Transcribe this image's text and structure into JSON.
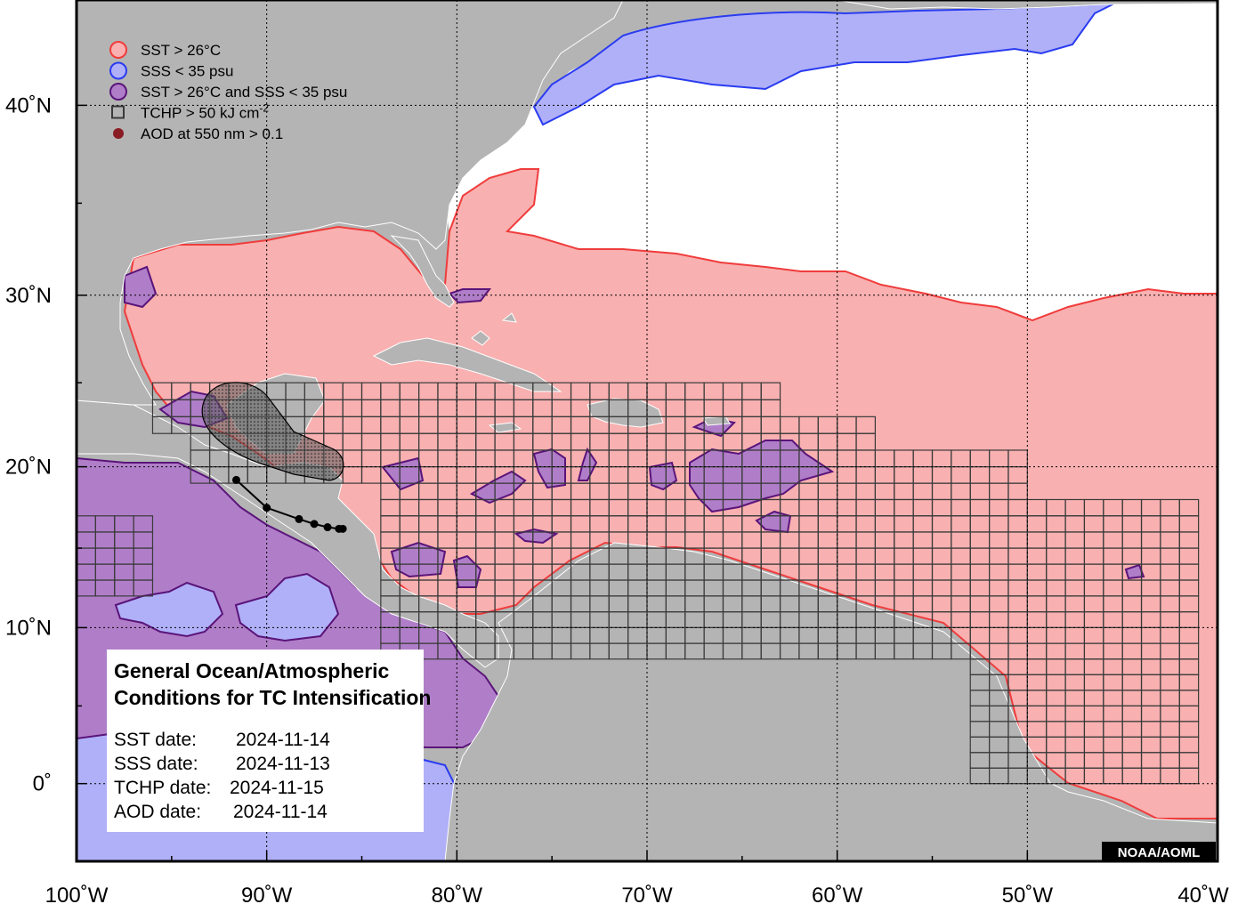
{
  "map": {
    "projection": "mercator",
    "lon_range": [
      -100,
      -40
    ],
    "lat_range": [
      -5,
      45
    ],
    "grid": true,
    "colors": {
      "land": "#b4b4b4",
      "open_ocean": "#ffffff",
      "sst": "#f8b0b0",
      "sst_border": "#f03c3c",
      "sss": "#b0b0f8",
      "sss_border": "#2a3cf0",
      "overlap": "#b07ec8",
      "overlap_border": "#5a147a",
      "tchp_grid": "#3a3a3a",
      "aod": "#8a1c24",
      "track_cone": "#4a4a4a"
    },
    "lon_ticks": [
      {
        "value": -100,
        "label": "100˚W"
      },
      {
        "value": -90,
        "label": "90˚W"
      },
      {
        "value": -80,
        "label": "80˚W"
      },
      {
        "value": -70,
        "label": "70˚W"
      },
      {
        "value": -60,
        "label": "60˚W"
      },
      {
        "value": -50,
        "label": "50˚W"
      },
      {
        "value": -40,
        "label": "40˚W"
      }
    ],
    "lat_ticks": [
      {
        "value": 0,
        "label": "0˚"
      },
      {
        "value": 10,
        "label": "10˚N"
      },
      {
        "value": 20,
        "label": "20˚N"
      },
      {
        "value": 30,
        "label": "30˚N"
      },
      {
        "value": 40,
        "label": "40˚N"
      }
    ]
  },
  "legend": {
    "placement": "top-left",
    "items": [
      {
        "label": "SST > 26°C",
        "symbol": "circle",
        "fill": "#f8b0b0",
        "stroke": "#f03c3c"
      },
      {
        "label": "SSS < 35 psu",
        "symbol": "circle",
        "fill": "#b0b0f8",
        "stroke": "#2a3cf0"
      },
      {
        "label": "SST > 26°C and SSS < 35 psu",
        "symbol": "circle",
        "fill": "#b07ec8",
        "stroke": "#5a147a"
      },
      {
        "label": "TCHP > 50 kJ cm",
        "superscript": "-2",
        "symbol": "square",
        "fill": "none",
        "stroke": "#3a3a3a"
      },
      {
        "label": "AOD at 550 nm > 0.1",
        "symbol": "dot",
        "fill": "#8a1c24",
        "stroke": "#8a1c24"
      }
    ]
  },
  "info_box": {
    "title_line1": "General Ocean/Atmospheric",
    "title_line2": "Conditions for TC Intensification",
    "dates": [
      {
        "label": "SST date:",
        "value": "2024-11-14"
      },
      {
        "label": "SSS date:",
        "value": "2024-11-13"
      },
      {
        "label": "TCHP date:",
        "value": "2024-11-15"
      },
      {
        "label": "AOD date:",
        "value": "2024-11-14"
      }
    ]
  },
  "credit": "NOAA/AOML",
  "storm_track": {
    "points": [
      {
        "lon": -91.6,
        "lat": 19.2
      },
      {
        "lon": -90.0,
        "lat": 17.5
      },
      {
        "lon": -88.3,
        "lat": 16.8
      },
      {
        "lon": -87.5,
        "lat": 16.5
      },
      {
        "lon": -86.8,
        "lat": 16.3
      },
      {
        "lon": -86.2,
        "lat": 16.2
      },
      {
        "lon": -86.0,
        "lat": 16.2
      }
    ]
  }
}
